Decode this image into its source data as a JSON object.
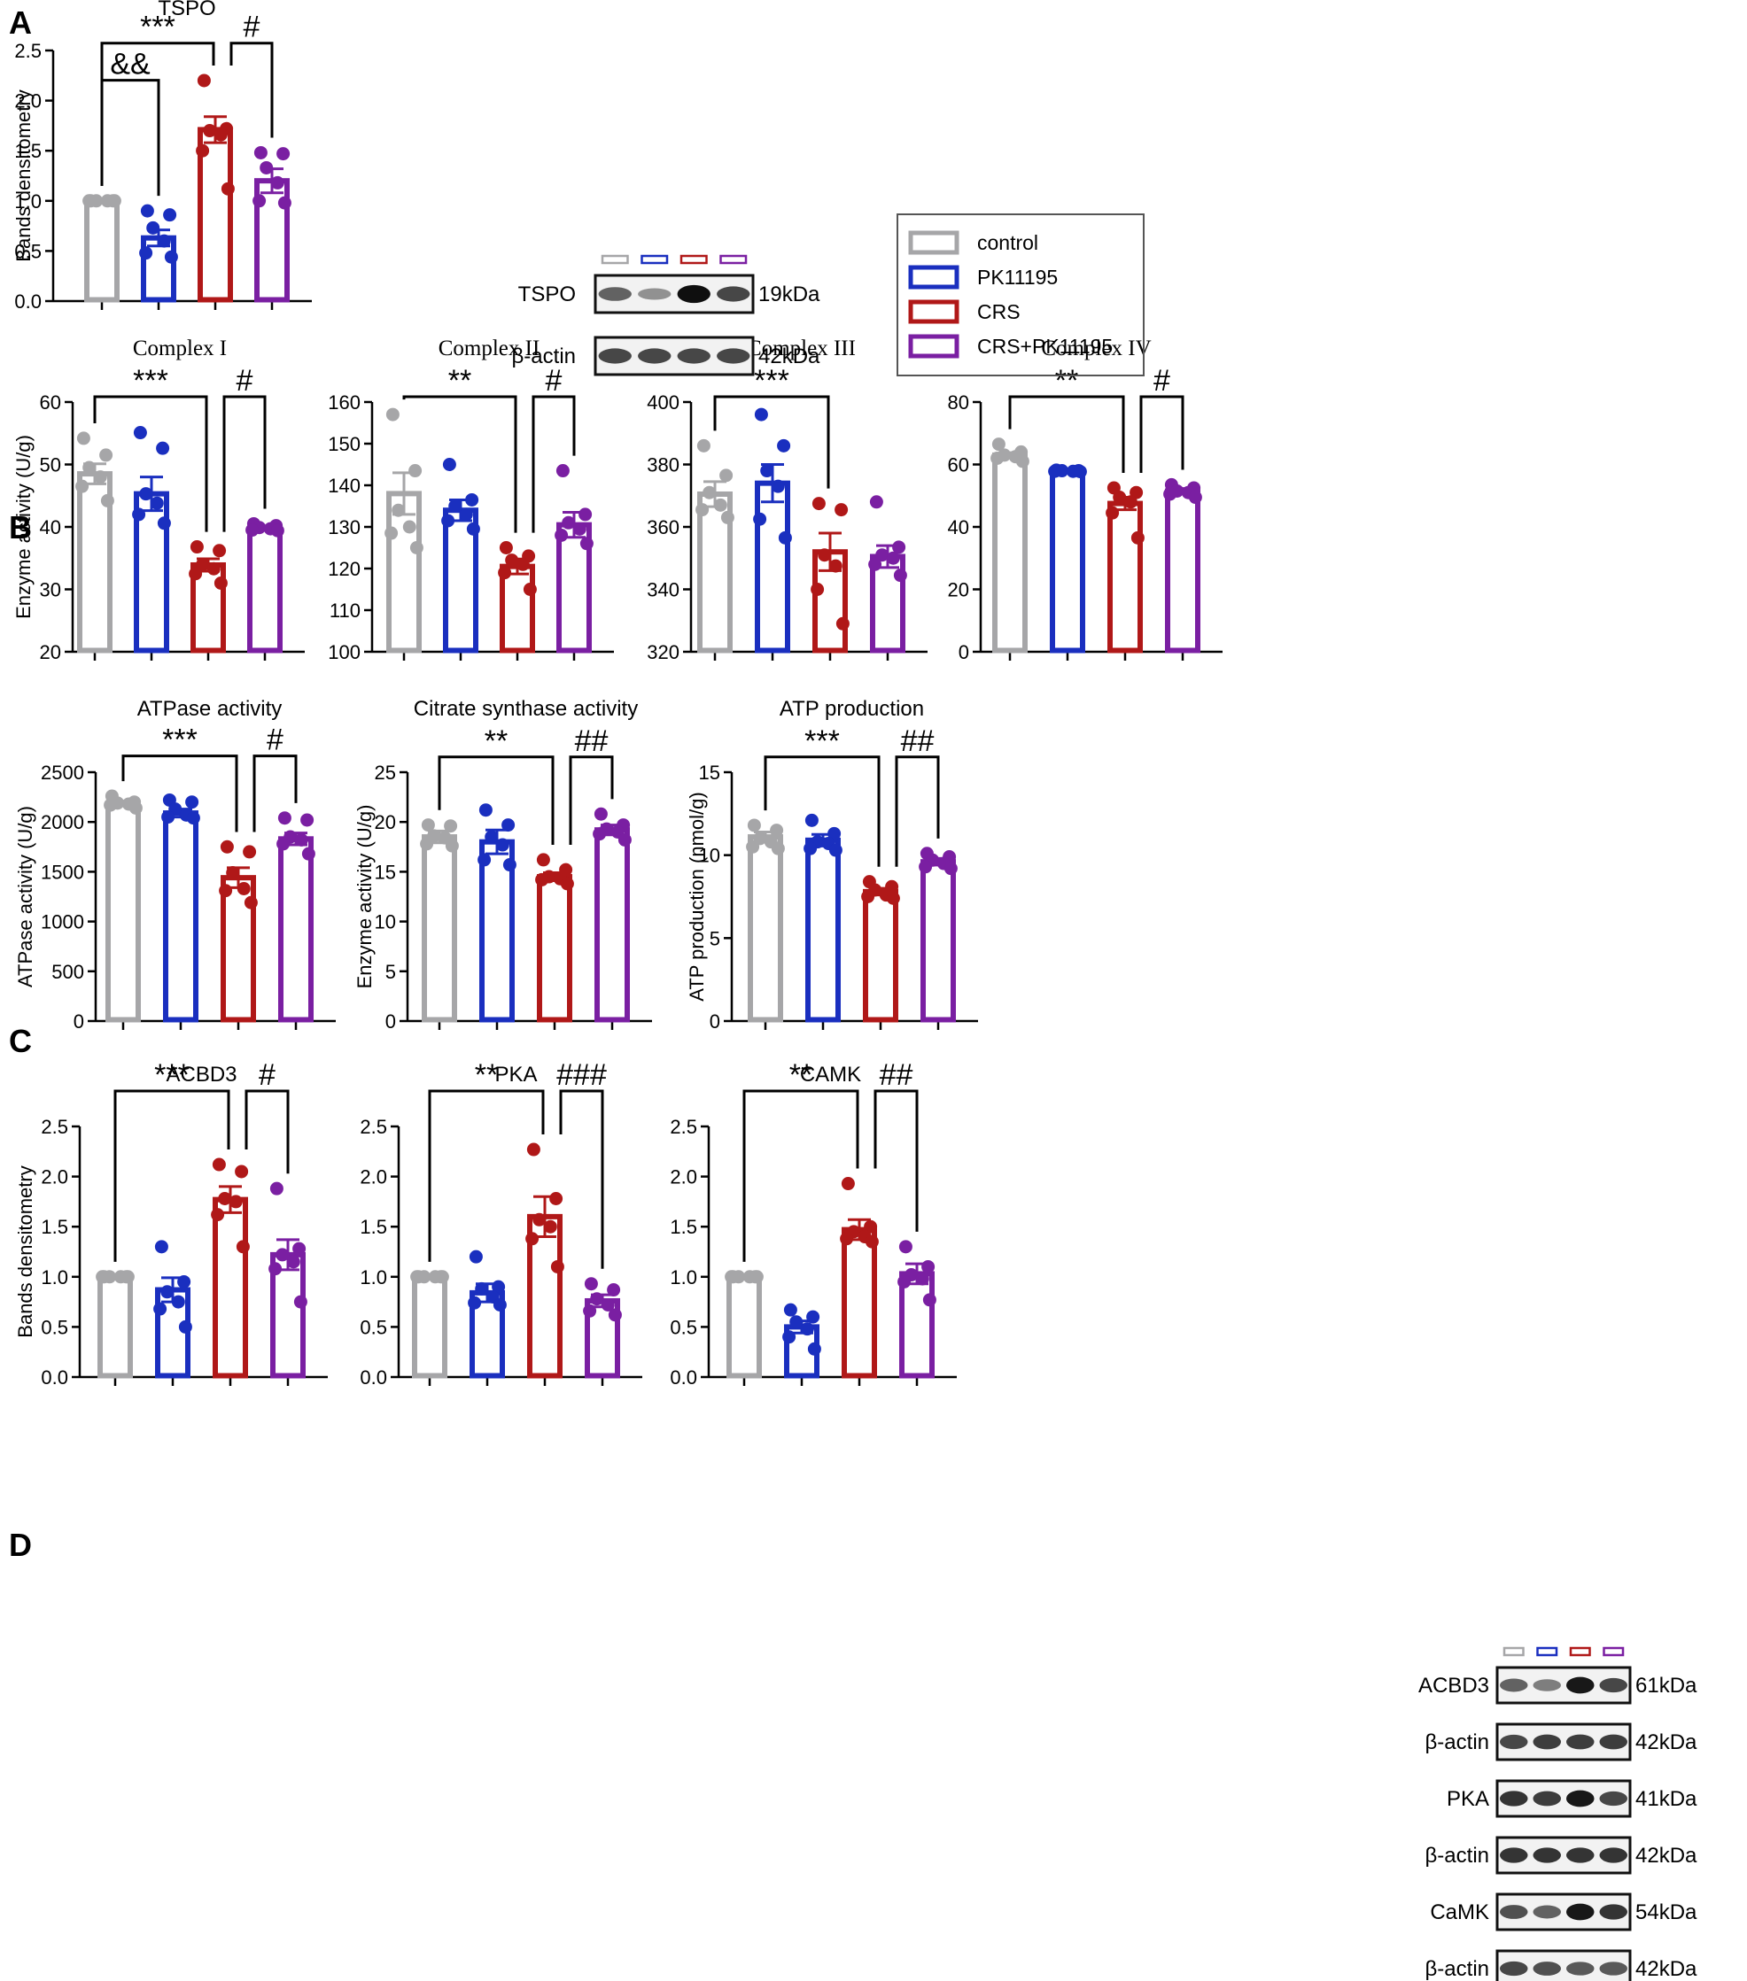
{
  "colors": {
    "control": "#a6a6a8",
    "PK11195": "#1a2fbf",
    "CRS": "#b01818",
    "CRS+PK11195": "#7a1fa2",
    "axis": "#000000"
  },
  "panels": {
    "A": "A",
    "B": "B",
    "C": "C",
    "D": "D"
  },
  "legend": {
    "items": [
      "control",
      "PK11195",
      "CRS",
      "CRS+PK11195"
    ]
  },
  "blot_A": {
    "rows": [
      {
        "label": "TSPO",
        "kda": "19kDa",
        "intensity": [
          0.55,
          0.3,
          1.0,
          0.7
        ]
      },
      {
        "label": "β-actin",
        "kda": "42kDa",
        "intensity": [
          0.7,
          0.7,
          0.7,
          0.7
        ]
      }
    ]
  },
  "blot_D": {
    "rows": [
      {
        "label": "ACBD3",
        "kda": "61kDa",
        "intensity": [
          0.55,
          0.4,
          0.95,
          0.7
        ]
      },
      {
        "label": "β-actin",
        "kda": "42kDa",
        "intensity": [
          0.7,
          0.75,
          0.75,
          0.75
        ]
      },
      {
        "label": "PKA",
        "kda": "41kDa",
        "intensity": [
          0.8,
          0.75,
          0.95,
          0.7
        ]
      },
      {
        "label": "β-actin",
        "kda": "42kDa",
        "intensity": [
          0.8,
          0.8,
          0.8,
          0.8
        ]
      },
      {
        "label": "CaMK",
        "kda": "54kDa",
        "intensity": [
          0.65,
          0.55,
          0.95,
          0.8
        ]
      },
      {
        "label": "β-actin",
        "kda": "42kDa",
        "intensity": [
          0.7,
          0.65,
          0.6,
          0.6
        ]
      }
    ]
  },
  "chart_data": [
    {
      "id": "A-TSPO",
      "type": "bar",
      "title": "TSPO",
      "title_style": "sans",
      "ylabel": "Bands densitometry",
      "ylim": [
        0,
        2.5
      ],
      "yticks": [
        "0.0",
        "0.5",
        "1.0",
        "1.5",
        "2.0",
        "2.5"
      ],
      "categories": [
        "control",
        "PK11195",
        "CRS",
        "CRS+PK11195"
      ],
      "values": [
        1.0,
        0.63,
        1.71,
        1.2
      ],
      "errors": [
        0.0,
        0.08,
        0.13,
        0.12
      ],
      "points": [
        [
          1,
          1,
          1,
          1,
          1,
          1
        ],
        [
          0.9,
          0.86,
          0.73,
          0.6,
          0.48,
          0.44
        ],
        [
          2.2,
          1.72,
          1.7,
          1.66,
          1.5,
          1.12
        ],
        [
          1.48,
          1.47,
          1.33,
          1.18,
          1.0,
          0.98
        ]
      ],
      "significance": [
        {
          "label": "&&",
          "from": 0,
          "to": 1,
          "y": 2.15
        },
        {
          "label": "***",
          "from": 0,
          "to": 2,
          "y": 2.52
        },
        {
          "label": "#",
          "from": 2,
          "to": 3,
          "y": 2.52
        }
      ]
    },
    {
      "id": "B-ComplexI",
      "type": "bar",
      "title": "Complex I",
      "title_style": "serif",
      "ylabel": "Enzyme activity (U/g)",
      "ylim": [
        20,
        60
      ],
      "yticks": [
        "20",
        "30",
        "40",
        "50",
        "60"
      ],
      "categories": [
        "control",
        "PK11195",
        "CRS",
        "CRS+PK11195"
      ],
      "values": [
        48.5,
        45.3,
        33.9,
        39.8
      ],
      "errors": [
        1.6,
        2.7,
        1.0,
        0.3
      ],
      "points": [
        [
          54.2,
          51.5,
          49.5,
          48.0,
          46.5,
          44.2
        ],
        [
          55.1,
          52.6,
          45.3,
          43.8,
          42.0,
          40.6
        ],
        [
          36.8,
          36.2,
          34.0,
          33.3,
          32.5,
          31.0
        ],
        [
          40.5,
          40.2,
          39.9,
          39.7,
          39.5,
          39.4
        ]
      ],
      "significance": [
        {
          "label": "***",
          "from": 0,
          "to": 2,
          "y": 60.0
        },
        {
          "label": "#",
          "from": 2,
          "to": 3,
          "y": 60.0
        }
      ]
    },
    {
      "id": "B-ComplexII",
      "type": "bar",
      "title": "Complex II",
      "title_style": "serif",
      "ylabel": "",
      "ylim": [
        100,
        160
      ],
      "yticks": [
        "100",
        "110",
        "120",
        "130",
        "140",
        "150",
        "160"
      ],
      "categories": [
        "control",
        "PK11195",
        "CRS",
        "CRS+PK11195"
      ],
      "values": [
        138.0,
        134.0,
        120.5,
        130.5
      ],
      "errors": [
        5.0,
        2.5,
        1.8,
        3.0
      ],
      "points": [
        [
          157.0,
          143.5,
          134.0,
          130.0,
          128.5,
          125.0
        ],
        [
          145.0,
          136.5,
          135.0,
          133.0,
          131.5,
          129.5
        ],
        [
          125.0,
          123.0,
          122.0,
          121.0,
          119.0,
          115.0
        ],
        [
          143.5,
          133.0,
          131.0,
          129.5,
          128.0,
          126.0
        ]
      ],
      "significance": [
        {
          "label": "**",
          "from": 0,
          "to": 2,
          "y": 160.0
        },
        {
          "label": "#",
          "from": 2,
          "to": 3,
          "y": 160.0
        }
      ]
    },
    {
      "id": "B-ComplexIII",
      "type": "bar",
      "title": "Complex III",
      "title_style": "serif",
      "ylabel": "",
      "ylim": [
        320,
        400
      ],
      "yticks": [
        "320",
        "340",
        "360",
        "380",
        "400"
      ],
      "categories": [
        "control",
        "PK11195",
        "CRS",
        "CRS+PK11195"
      ],
      "values": [
        370.5,
        374.0,
        352.0,
        350.5
      ],
      "errors": [
        4.0,
        6.0,
        6.0,
        3.5
      ],
      "points": [
        [
          386.0,
          376.5,
          371.0,
          367.0,
          365.5,
          363.0
        ],
        [
          396.0,
          386.0,
          378.0,
          373.0,
          362.5,
          356.5
        ],
        [
          367.5,
          365.5,
          351.0,
          347.5,
          340.0,
          329.0
        ],
        [
          368.0,
          353.5,
          351.0,
          350.0,
          348.0,
          344.5
        ]
      ],
      "significance": [
        {
          "label": "***",
          "from": 0,
          "to": 2,
          "y": 400.0
        }
      ]
    },
    {
      "id": "B-ComplexIV",
      "type": "bar",
      "title": "Complex IV",
      "title_style": "serif",
      "ylabel": "",
      "ylim": [
        0,
        80
      ],
      "yticks": [
        "0",
        "20",
        "40",
        "60",
        "80"
      ],
      "categories": [
        "control",
        "PK11195",
        "CRS",
        "CRS+PK11195"
      ],
      "values": [
        63.0,
        58.0,
        47.5,
        51.5
      ],
      "errors": [
        0.8,
        0.2,
        2.0,
        0.8
      ],
      "points": [
        [
          66.5,
          64.0,
          63.0,
          62.5,
          62.0,
          61.0
        ],
        [
          58.2,
          58.0,
          58.0,
          57.8,
          57.8,
          57.7
        ],
        [
          52.5,
          51.0,
          49.5,
          48.0,
          44.5,
          36.5
        ],
        [
          53.5,
          52.5,
          51.5,
          51.0,
          50.5,
          49.5
        ]
      ],
      "significance": [
        {
          "label": "**",
          "from": 0,
          "to": 2,
          "y": 80.0
        },
        {
          "label": "#",
          "from": 2,
          "to": 3,
          "y": 80.0
        }
      ]
    },
    {
      "id": "C-ATPase",
      "type": "bar",
      "title": "ATPase activity",
      "title_style": "sans",
      "ylabel": "ATPase activity (U/g)",
      "ylim": [
        0,
        2500
      ],
      "yticks": [
        "0",
        "500",
        "1000",
        "1500",
        "2000",
        "2500"
      ],
      "categories": [
        "control",
        "PK11195",
        "CRS",
        "CRS+PK11195"
      ],
      "values": [
        2190,
        2090,
        1440,
        1830
      ],
      "errors": [
        20,
        40,
        100,
        60
      ],
      "points": [
        [
          2260,
          2200,
          2190,
          2180,
          2170,
          2140
        ],
        [
          2220,
          2200,
          2130,
          2070,
          2050,
          2040
        ],
        [
          1750,
          1700,
          1490,
          1330,
          1310,
          1190
        ],
        [
          2040,
          2020,
          1850,
          1820,
          1780,
          1680
        ]
      ],
      "significance": [
        {
          "label": "***",
          "from": 0,
          "to": 2,
          "y": 2610
        },
        {
          "label": "#",
          "from": 2,
          "to": 3,
          "y": 2610
        }
      ]
    },
    {
      "id": "C-CitrateSynthase",
      "type": "bar",
      "title": "Citrate synthase activity",
      "title_style": "sans",
      "ylabel": "Enzyme activity (U/g)",
      "ylim": [
        0,
        25
      ],
      "yticks": [
        "0",
        "5",
        "10",
        "15",
        "20",
        "25"
      ],
      "categories": [
        "control",
        "PK11195",
        "CRS",
        "CRS+PK11195"
      ],
      "values": [
        18.5,
        18.0,
        14.5,
        19.2
      ],
      "errors": [
        0.6,
        1.2,
        0.4,
        0.5
      ],
      "points": [
        [
          19.7,
          19.6,
          18.6,
          18.4,
          17.8,
          17.6
        ],
        [
          21.2,
          19.7,
          18.5,
          17.7,
          16.2,
          15.7
        ],
        [
          16.2,
          15.2,
          14.5,
          14.3,
          14.2,
          13.8
        ],
        [
          20.8,
          19.7,
          19.3,
          19.0,
          18.8,
          18.2
        ]
      ],
      "significance": [
        {
          "label": "**",
          "from": 0,
          "to": 2,
          "y": 26.0
        },
        {
          "label": "##",
          "from": 2,
          "to": 3,
          "y": 26.0
        }
      ]
    },
    {
      "id": "C-ATPProduction",
      "type": "bar",
      "title": "ATP production",
      "title_style": "sans",
      "ylabel": "ATP production (nmol/g)",
      "ylim": [
        0,
        15
      ],
      "yticks": [
        "0",
        "5",
        "10",
        "15"
      ],
      "categories": [
        "control",
        "PK11195",
        "CRS",
        "CRS+PK11195"
      ],
      "values": [
        11.1,
        10.9,
        7.8,
        9.6
      ],
      "errors": [
        0.3,
        0.35,
        0.2,
        0.2
      ],
      "points": [
        [
          11.8,
          11.5,
          11.0,
          10.8,
          10.5,
          10.4
        ],
        [
          12.1,
          11.3,
          10.8,
          10.7,
          10.4,
          10.3
        ],
        [
          8.4,
          8.1,
          7.9,
          7.6,
          7.5,
          7.4
        ],
        [
          10.1,
          9.9,
          9.7,
          9.5,
          9.3,
          9.2
        ]
      ],
      "significance": [
        {
          "label": "***",
          "from": 0,
          "to": 2,
          "y": 15.6
        },
        {
          "label": "##",
          "from": 2,
          "to": 3,
          "y": 15.6
        }
      ]
    },
    {
      "id": "D-ACBD3",
      "type": "bar",
      "title": "ACBD3",
      "title_style": "sans",
      "ylabel": "Bands densitometry",
      "ylim": [
        0,
        2.5
      ],
      "yticks": [
        "0.0",
        "0.5",
        "1.0",
        "1.5",
        "2.0",
        "2.5"
      ],
      "categories": [
        "control",
        "PK11195",
        "CRS",
        "CRS+PK11195"
      ],
      "values": [
        1.0,
        0.87,
        1.77,
        1.22
      ],
      "errors": [
        0.0,
        0.12,
        0.13,
        0.15
      ],
      "points": [
        [
          1,
          1,
          1,
          1,
          1,
          1
        ],
        [
          1.3,
          0.95,
          0.85,
          0.75,
          0.68,
          0.5
        ],
        [
          2.12,
          2.05,
          1.78,
          1.75,
          1.62,
          1.3
        ],
        [
          1.88,
          1.28,
          1.22,
          1.15,
          1.08,
          0.75
        ]
      ],
      "significance": [
        {
          "label": "***",
          "from": 0,
          "to": 2,
          "y": 2.8
        },
        {
          "label": "#",
          "from": 2,
          "to": 3,
          "y": 2.8
        }
      ]
    },
    {
      "id": "D-PKA",
      "type": "bar",
      "title": "PKA",
      "title_style": "sans",
      "ylabel": "",
      "ylim": [
        0,
        2.5
      ],
      "yticks": [
        "0.0",
        "0.5",
        "1.0",
        "1.5",
        "2.0",
        "2.5"
      ],
      "categories": [
        "control",
        "PK11195",
        "CRS",
        "CRS+PK11195"
      ],
      "values": [
        1.0,
        0.84,
        1.6,
        0.76
      ],
      "errors": [
        0.0,
        0.09,
        0.2,
        0.06
      ],
      "points": [
        [
          1,
          1,
          1,
          1,
          1,
          1
        ],
        [
          1.2,
          0.9,
          0.88,
          0.8,
          0.74,
          0.72
        ],
        [
          2.27,
          1.78,
          1.57,
          1.5,
          1.38,
          1.1
        ],
        [
          0.93,
          0.87,
          0.78,
          0.72,
          0.66,
          0.62
        ]
      ],
      "significance": [
        {
          "label": "**",
          "from": 0,
          "to": 2,
          "y": 2.8
        },
        {
          "label": "###",
          "from": 2,
          "to": 3,
          "y": 2.8
        }
      ]
    },
    {
      "id": "D-CAMK",
      "type": "bar",
      "title": "CAMK",
      "title_style": "sans",
      "ylabel": "",
      "ylim": [
        0,
        2.5
      ],
      "yticks": [
        "0.0",
        "0.5",
        "1.0",
        "1.5",
        "2.0",
        "2.5"
      ],
      "categories": [
        "control",
        "PK11195",
        "CRS",
        "CRS+PK11195"
      ],
      "values": [
        1.0,
        0.5,
        1.47,
        1.03
      ],
      "errors": [
        0.0,
        0.06,
        0.1,
        0.1
      ],
      "points": [
        [
          1,
          1,
          1,
          1,
          1,
          1
        ],
        [
          0.67,
          0.6,
          0.55,
          0.48,
          0.4,
          0.28
        ],
        [
          1.93,
          1.5,
          1.45,
          1.4,
          1.38,
          1.35
        ],
        [
          1.3,
          1.1,
          1.02,
          0.98,
          0.95,
          0.77
        ]
      ],
      "significance": [
        {
          "label": "**",
          "from": 0,
          "to": 2,
          "y": 2.8
        },
        {
          "label": "##",
          "from": 2,
          "to": 3,
          "y": 2.8
        }
      ]
    }
  ]
}
